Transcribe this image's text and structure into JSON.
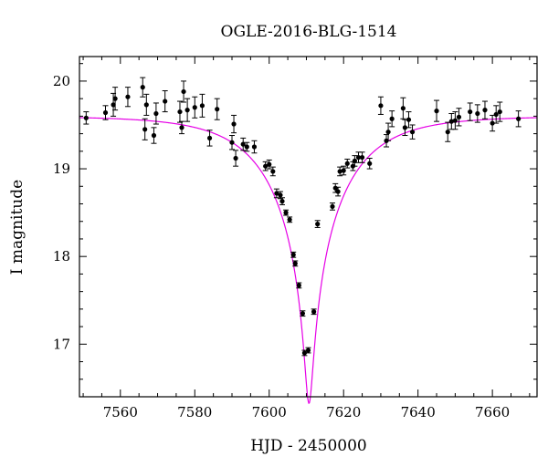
{
  "chart_data": {
    "type": "scatter",
    "title": "OGLE-2016-BLG-1514",
    "xlabel": "HJD - 2450000",
    "ylabel": "I magnitude",
    "xlim": [
      7549,
      7672
    ],
    "ylim": [
      20.28,
      16.4
    ],
    "y_inverted": true,
    "xticks_major": [
      7560,
      7580,
      7600,
      7620,
      7640,
      7660
    ],
    "xticks_minor_step": 5,
    "yticks_major": [
      17,
      18,
      19,
      20
    ],
    "yticks_minor_step": 0.2,
    "grid": false,
    "colors": {
      "model": "#e600e6",
      "points": "#000000",
      "axes": "#000000"
    },
    "series": [
      {
        "type": "scatter_errorbar",
        "x": [
          7550.8,
          7556.0,
          7558.1,
          7558.6,
          7562.0,
          7566.0,
          7566.6,
          7567.0,
          7569.0,
          7569.6,
          7572.0,
          7576.0,
          7576.5,
          7577.0,
          7578.0,
          7580.0,
          7582.0,
          7584.0,
          7586.0,
          7590.0,
          7590.5,
          7591.0,
          7593.0,
          7594.0,
          7596.0,
          7599.0,
          7600.0,
          7601.0,
          7602.0,
          7603.0,
          7603.5,
          7604.5,
          7605.5,
          7606.5,
          7607.0,
          7608.0,
          7609.0,
          7609.5,
          7610.5,
          7612.0,
          7613.0,
          7617.0,
          7617.8,
          7618.5,
          7619.0,
          7620.0,
          7621.0,
          7622.5,
          7623.0,
          7624.0,
          7625.0,
          7627.0,
          7630.0,
          7631.5,
          7632.0,
          7633.0,
          7636.0,
          7636.5,
          7637.5,
          7638.5,
          7645.0,
          7648.0,
          7649.0,
          7650.0,
          7651.0,
          7654.0,
          7656.0,
          7658.0,
          7660.0,
          7661.0,
          7662.0,
          7667.0
        ],
        "y": [
          19.58,
          19.64,
          19.73,
          19.8,
          19.82,
          19.93,
          19.45,
          19.73,
          19.38,
          19.63,
          19.77,
          19.65,
          19.47,
          19.88,
          19.67,
          19.7,
          19.72,
          19.35,
          19.68,
          19.3,
          19.51,
          19.12,
          19.28,
          19.25,
          19.25,
          19.03,
          19.05,
          18.97,
          18.72,
          18.7,
          18.63,
          18.5,
          18.42,
          18.02,
          17.92,
          17.67,
          17.35,
          16.9,
          16.93,
          17.37,
          18.37,
          18.57,
          18.78,
          18.74,
          18.97,
          18.98,
          19.06,
          19.03,
          19.09,
          19.13,
          19.13,
          19.06,
          19.72,
          19.32,
          19.42,
          19.57,
          19.69,
          19.47,
          19.56,
          19.42,
          19.66,
          19.42,
          19.54,
          19.55,
          19.59,
          19.65,
          19.63,
          19.67,
          19.52,
          19.62,
          19.65,
          19.57
        ],
        "yerr": [
          0.07,
          0.08,
          0.13,
          0.13,
          0.11,
          0.11,
          0.12,
          0.12,
          0.09,
          0.12,
          0.12,
          0.12,
          0.07,
          0.12,
          0.13,
          0.12,
          0.13,
          0.09,
          0.12,
          0.08,
          0.1,
          0.09,
          0.07,
          0.05,
          0.07,
          0.05,
          0.05,
          0.05,
          0.05,
          0.04,
          0.04,
          0.03,
          0.03,
          0.03,
          0.03,
          0.03,
          0.03,
          0.03,
          0.03,
          0.03,
          0.04,
          0.04,
          0.05,
          0.05,
          0.05,
          0.05,
          0.05,
          0.05,
          0.06,
          0.06,
          0.06,
          0.06,
          0.1,
          0.07,
          0.1,
          0.09,
          0.12,
          0.09,
          0.09,
          0.08,
          0.12,
          0.11,
          0.09,
          0.1,
          0.1,
          0.1,
          0.1,
          0.1,
          0.09,
          0.1,
          0.11,
          0.09
        ]
      },
      {
        "type": "line",
        "model": "point-lens",
        "t0": 7610.7,
        "u0": 0.049,
        "tE": 20.0,
        "I_base": 19.6
      }
    ]
  }
}
